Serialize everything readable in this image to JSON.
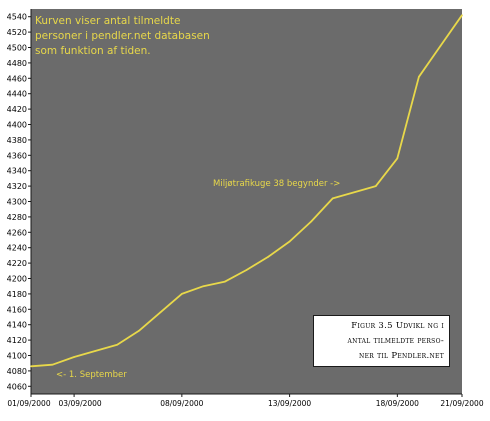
{
  "chart_data": {
    "type": "line",
    "annotations": {
      "description_lines": [
        "Kurven viser antal tilmeldte",
        "personer i pendler.net databasen",
        "som funktion af tiden."
      ],
      "start_marker": "<- 1. September",
      "event_marker": "Miljøtrafikuge 38 begynder ->"
    },
    "caption": {
      "lines": [
        "Figur 3.5 Udvikl ng i",
        "antal tilmeldte perso-",
        "ner til Pendler.net"
      ]
    },
    "y_ticks": [
      4060,
      4080,
      4100,
      4120,
      4140,
      4160,
      4180,
      4200,
      4220,
      4240,
      4260,
      4280,
      4300,
      4320,
      4340,
      4360,
      4380,
      4400,
      4420,
      4440,
      4460,
      4480,
      4500,
      4520,
      4540
    ],
    "y_tick_labels": [
      "4060",
      "4080",
      "4100",
      "4120",
      "4140",
      "4160",
      "4180",
      "4200",
      "4220",
      "4240",
      "4260",
      "4280",
      "4300",
      "4320",
      "4340",
      "4360",
      "4380",
      "4400",
      "4420",
      "4440",
      "4460",
      "4480",
      "4500",
      "4520",
      "4540"
    ],
    "ylim": [
      4050,
      4550
    ],
    "x_tick_labels": [
      "01/09/2000",
      "03/09/2000",
      "08/09/2000",
      "13/09/2000",
      "18/09/2000",
      "21/09/2000"
    ],
    "x_tick_days": [
      1,
      3,
      8,
      13,
      18,
      21
    ],
    "xlim_days": [
      1,
      21
    ],
    "series": [
      {
        "x_days": [
          1,
          2,
          3,
          4,
          5,
          6,
          7,
          8,
          9,
          10,
          11,
          12,
          13,
          14,
          15,
          16,
          17,
          18,
          19,
          20,
          21
        ],
        "values": [
          4086,
          4088,
          4098,
          4106,
          4114,
          4132,
          4156,
          4180,
          4190,
          4196,
          4211,
          4228,
          4248,
          4274,
          4304,
          4312,
          4320,
          4356,
          4462,
          4502,
          4542
        ],
        "color": "#e8d84a"
      }
    ],
    "colors": {
      "plot_background": "#6b6b6b",
      "line": "#e8d84a",
      "annotation_text": "#e8d84a"
    },
    "grid": false
  }
}
